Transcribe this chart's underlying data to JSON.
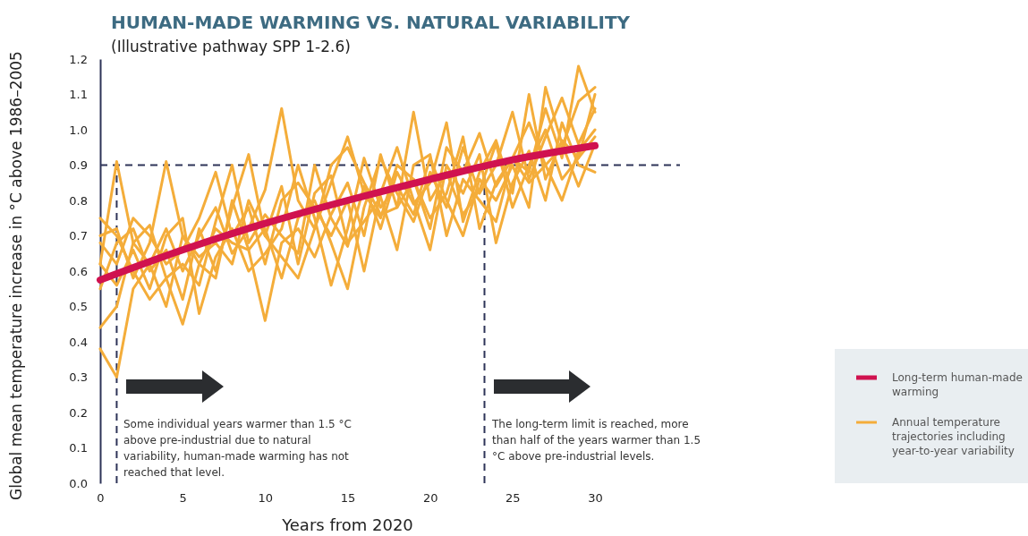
{
  "chart_data": {
    "type": "line",
    "title": "HUMAN-MADE WARMING VS. NATURAL VARIABILITY",
    "subtitle": "(Illustrative pathway SPP 1-2.6)",
    "xlabel": "Years from 2020",
    "ylabel": "Global mean temperature increase in °C above 1986–2005",
    "x": [
      0,
      1,
      2,
      3,
      4,
      5,
      6,
      7,
      8,
      9,
      10,
      11,
      12,
      13,
      14,
      15,
      16,
      17,
      18,
      19,
      20,
      21,
      22,
      23,
      24,
      25,
      26,
      27,
      28,
      29,
      30
    ],
    "xlim": [
      0,
      30
    ],
    "xticks": [
      0,
      5,
      10,
      15,
      20,
      25,
      30
    ],
    "ylim": [
      0,
      1.2
    ],
    "yticks": [
      {
        "value": 0,
        "label": "0.0"
      },
      {
        "value": 0.1,
        "label": "0.1"
      },
      {
        "value": 0.2,
        "label": "0.2"
      },
      {
        "value": 0.3,
        "label": "0.3"
      },
      {
        "value": 0.4,
        "label": "0.4"
      },
      {
        "value": 0.5,
        "label": "0.5"
      },
      {
        "value": 0.6,
        "label": "0.6"
      },
      {
        "value": 0.7,
        "label": "0.7"
      },
      {
        "value": 0.8,
        "label": "0.8"
      },
      {
        "value": 0.9,
        "label": "0.9"
      },
      {
        "value": 1,
        "label": "1.0"
      },
      {
        "value": 1.1,
        "label": "1.1"
      },
      {
        "value": 1.2,
        "label": "1.2"
      }
    ],
    "grid": false,
    "legend": "right",
    "line_style": "solid",
    "marker": "none",
    "series": [
      {
        "name": "Annual temperature trajectories including year-to-year variability",
        "color": "#f4ad3a",
        "values": [
          0.62,
          0.91,
          0.68,
          0.62,
          0.72,
          0.6,
          0.7,
          0.78,
          0.65,
          0.72,
          0.83,
          1.06,
          0.8,
          0.72,
          0.85,
          0.98,
          0.82,
          0.75,
          0.9,
          0.86,
          0.72,
          0.95,
          0.88,
          0.99,
          0.84,
          0.92,
          1.02,
          0.9,
          0.95,
          1.08,
          1.12
        ]
      },
      {
        "color": "#f4ad3a",
        "values": [
          0.38,
          0.3,
          0.55,
          0.62,
          0.5,
          0.7,
          0.62,
          0.58,
          0.8,
          0.66,
          0.72,
          0.58,
          0.75,
          0.8,
          0.68,
          0.55,
          0.78,
          0.92,
          0.82,
          0.74,
          0.88,
          0.78,
          0.95,
          0.82,
          0.9,
          1.05,
          0.86,
          0.98,
          1.09,
          0.96,
          1.06
        ]
      },
      {
        "color": "#f4ad3a",
        "values": [
          0.75,
          0.7,
          0.6,
          0.52,
          0.58,
          0.45,
          0.62,
          0.72,
          0.68,
          0.66,
          0.46,
          0.68,
          0.72,
          0.64,
          0.76,
          0.85,
          0.7,
          0.93,
          0.78,
          1.05,
          0.8,
          0.88,
          0.76,
          0.83,
          0.96,
          0.78,
          0.9,
          1.0,
          0.86,
          0.92,
          0.98
        ]
      },
      {
        "color": "#f4ad3a",
        "values": [
          0.55,
          0.68,
          0.72,
          0.6,
          0.66,
          0.52,
          0.72,
          0.6,
          0.78,
          0.93,
          0.7,
          0.64,
          0.58,
          0.72,
          0.9,
          0.95,
          0.85,
          0.76,
          0.78,
          0.86,
          0.75,
          0.82,
          0.98,
          0.72,
          0.85,
          0.92,
          0.88,
          1.06,
          0.92,
          1.18,
          1.05
        ]
      },
      {
        "color": "#f4ad3a",
        "values": [
          0.68,
          0.62,
          0.75,
          0.7,
          0.62,
          0.66,
          0.75,
          0.88,
          0.7,
          0.78,
          0.62,
          0.8,
          0.85,
          0.78,
          0.7,
          0.8,
          0.6,
          0.82,
          0.95,
          0.8,
          0.66,
          0.9,
          0.82,
          0.93,
          0.68,
          0.85,
          0.94,
          0.8,
          1.02,
          0.9,
          0.88
        ]
      },
      {
        "color": "#f4ad3a",
        "values": [
          0.44,
          0.5,
          0.68,
          0.73,
          0.58,
          0.62,
          0.56,
          0.74,
          0.9,
          0.68,
          0.76,
          0.7,
          0.65,
          0.9,
          0.75,
          0.67,
          0.84,
          0.72,
          0.88,
          0.79,
          0.85,
          1.02,
          0.74,
          0.88,
          0.97,
          0.82,
          1.1,
          0.86,
          0.97,
          0.92,
          1.1
        ]
      },
      {
        "color": "#f4ad3a",
        "values": [
          0.7,
          0.72,
          0.58,
          0.68,
          0.91,
          0.7,
          0.64,
          0.68,
          0.62,
          0.8,
          0.7,
          0.84,
          0.62,
          0.82,
          0.87,
          0.68,
          0.74,
          0.81,
          0.66,
          0.9,
          0.93,
          0.7,
          0.86,
          0.8,
          0.74,
          0.92,
          0.85,
          0.9,
          0.8,
          0.94,
          1.0
        ]
      },
      {
        "color": "#f4ad3a",
        "values": [
          0.62,
          0.56,
          0.66,
          0.55,
          0.7,
          0.75,
          0.48,
          0.64,
          0.72,
          0.6,
          0.65,
          0.72,
          0.9,
          0.75,
          0.56,
          0.72,
          0.92,
          0.78,
          0.84,
          0.76,
          0.92,
          0.8,
          0.7,
          0.86,
          0.8,
          0.9,
          0.78,
          1.12,
          0.96,
          0.84,
          0.96
        ]
      },
      {
        "name": "Long-term human-made warming",
        "color": "#d0124f",
        "x": [
          0,
          5,
          10,
          15,
          20,
          25,
          30
        ],
        "values": [
          0.575,
          0.66,
          0.735,
          0.8,
          0.86,
          0.915,
          0.955
        ]
      }
    ],
    "ref_lines": [
      {
        "axis": "y",
        "value": 0.9,
        "color": "#2e3458",
        "line_style": "dashed"
      },
      {
        "axis": "x",
        "value": 1,
        "color": "#2e3458",
        "line_style": "dashed"
      },
      {
        "axis": "x",
        "value": 23.3,
        "color": "#2e3458",
        "line_style": "dashed"
      }
    ],
    "annotations": [
      "Some individual years warmer than 1.5 °C above pre-industrial due to natural variability, human-made warming has not reached that level.",
      "The long-term limit is reached, more than half of the years warmer than 1.5 °C above pre-industrial levels."
    ]
  }
}
